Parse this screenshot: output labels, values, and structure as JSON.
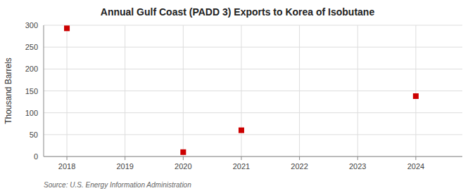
{
  "chart_data": {
    "type": "scatter",
    "title": "Annual Gulf Coast (PADD 3) Exports to Korea of Isobutane",
    "ylabel": "Thousand Barrels",
    "source": "Source: U.S. Energy Information Administration",
    "x": [
      2018,
      2020,
      2021,
      2024
    ],
    "values": [
      293,
      10,
      60,
      138
    ],
    "color": "#CC0000",
    "marker": "square",
    "xlim": [
      2017.6,
      2024.8
    ],
    "ylim": [
      0,
      300
    ],
    "xticks": [
      2018,
      2019,
      2020,
      2021,
      2022,
      2023,
      2024
    ],
    "yticks": [
      0,
      50,
      100,
      150,
      200,
      250,
      300
    ],
    "grid": true
  }
}
